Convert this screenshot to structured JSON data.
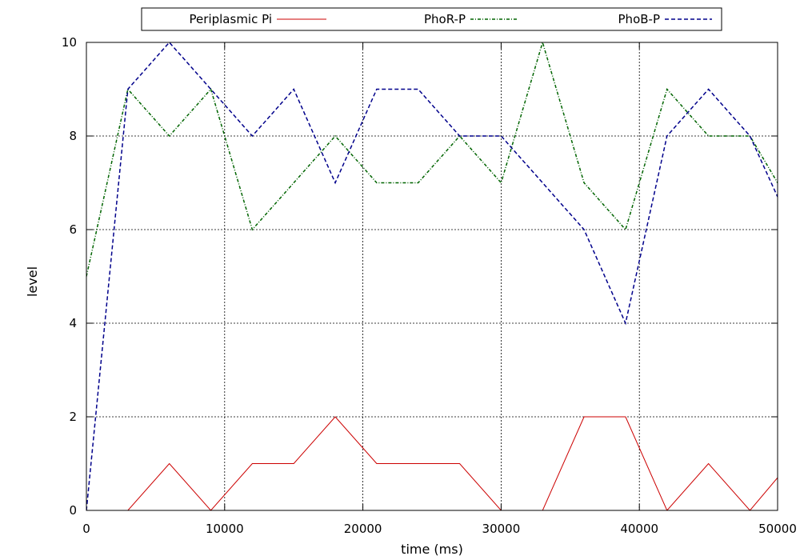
{
  "chart_data": {
    "type": "line",
    "xlabel": "time (ms)",
    "ylabel": "level",
    "xlim": [
      0,
      50000
    ],
    "ylim": [
      0,
      10
    ],
    "xticks": [
      0,
      10000,
      20000,
      30000,
      40000,
      50000
    ],
    "yticks": [
      0,
      2,
      4,
      6,
      8,
      10
    ],
    "xtick_labels": [
      "0",
      "10000",
      "20000",
      "30000",
      "40000",
      "50000"
    ],
    "ytick_labels": [
      "0",
      "2",
      "4",
      "6",
      "8",
      "10"
    ],
    "grid": true,
    "legend_position": "top",
    "series": [
      {
        "name": "Periplasmic Pi",
        "color": "#cc0000",
        "dash": "solid",
        "x": [
          0,
          3000,
          6000,
          9000,
          12000,
          15000,
          18000,
          21000,
          24000,
          27000,
          30000,
          33000,
          36000,
          39000,
          42000,
          45000,
          48000,
          50000
        ],
        "y": [
          -1,
          0,
          1,
          0,
          1,
          1,
          2,
          1,
          1,
          1,
          0,
          0,
          2,
          2,
          0,
          1,
          0,
          0.7
        ]
      },
      {
        "name": "PhoR-P",
        "color": "#006400",
        "dash": "dash-dot",
        "x": [
          0,
          3000,
          6000,
          9000,
          12000,
          15000,
          18000,
          21000,
          24000,
          27000,
          30000,
          33000,
          36000,
          39000,
          42000,
          45000,
          48000,
          50000
        ],
        "y": [
          5,
          9,
          8,
          9,
          6,
          7,
          8,
          7,
          7,
          8,
          7,
          10,
          7,
          6,
          9,
          8,
          8,
          7
        ]
      },
      {
        "name": "PhoB-P",
        "color": "#00008b",
        "dash": "dashed",
        "x": [
          0,
          3000,
          6000,
          9000,
          12000,
          15000,
          18000,
          21000,
          24000,
          27000,
          30000,
          33000,
          36000,
          39000,
          42000,
          45000,
          48000,
          50000
        ],
        "y": [
          0,
          9,
          10,
          9,
          8,
          9,
          7,
          9,
          9,
          8,
          8,
          7,
          6,
          4,
          8,
          9,
          8,
          6.7
        ]
      }
    ]
  }
}
